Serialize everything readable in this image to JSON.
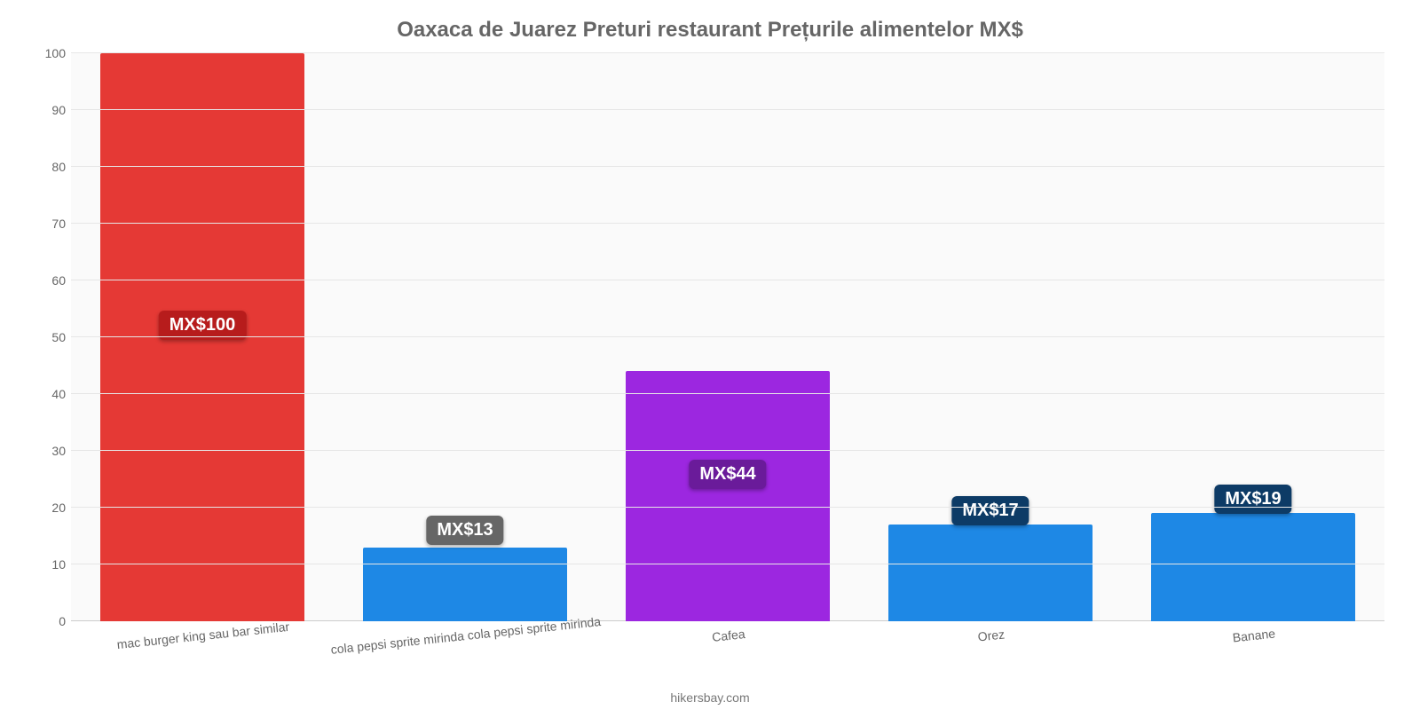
{
  "chart": {
    "type": "bar",
    "title": "Oaxaca de Juarez Preturi restaurant Prețurile alimentelor MX$",
    "title_fontsize": 24,
    "title_color": "#666666",
    "background_color": "#fafafa",
    "grid_color": "#e6e6e6",
    "axis_color": "#cccccc",
    "tick_font_color": "#666666",
    "tick_fontsize": 14,
    "ymin": 0,
    "ymax": 100,
    "ytick_step": 10,
    "yticks": [
      0,
      10,
      20,
      30,
      40,
      50,
      60,
      70,
      80,
      90,
      100
    ],
    "bar_width_pct": 78,
    "categories": [
      "mac burger king sau bar similar",
      "cola pepsi sprite mirinda cola pepsi sprite mirinda",
      "Cafea",
      "Orez",
      "Banane"
    ],
    "values": [
      100,
      13,
      44,
      17,
      19
    ],
    "bar_colors": [
      "#e53935",
      "#1e88e5",
      "#9c27e0",
      "#1e88e5",
      "#1e88e5"
    ],
    "value_labels": [
      "MX$100",
      "MX$13",
      "MX$44",
      "MX$17",
      "MX$19"
    ],
    "label_bg_colors": [
      "#b71c1c",
      "#666666",
      "#6a1b9a",
      "#0d3b66",
      "#0d3b66"
    ],
    "label_offsets": [
      -290,
      18,
      -100,
      6,
      6
    ],
    "attribution": "hikersbay.com",
    "xlabel_rotate_deg": -6
  }
}
